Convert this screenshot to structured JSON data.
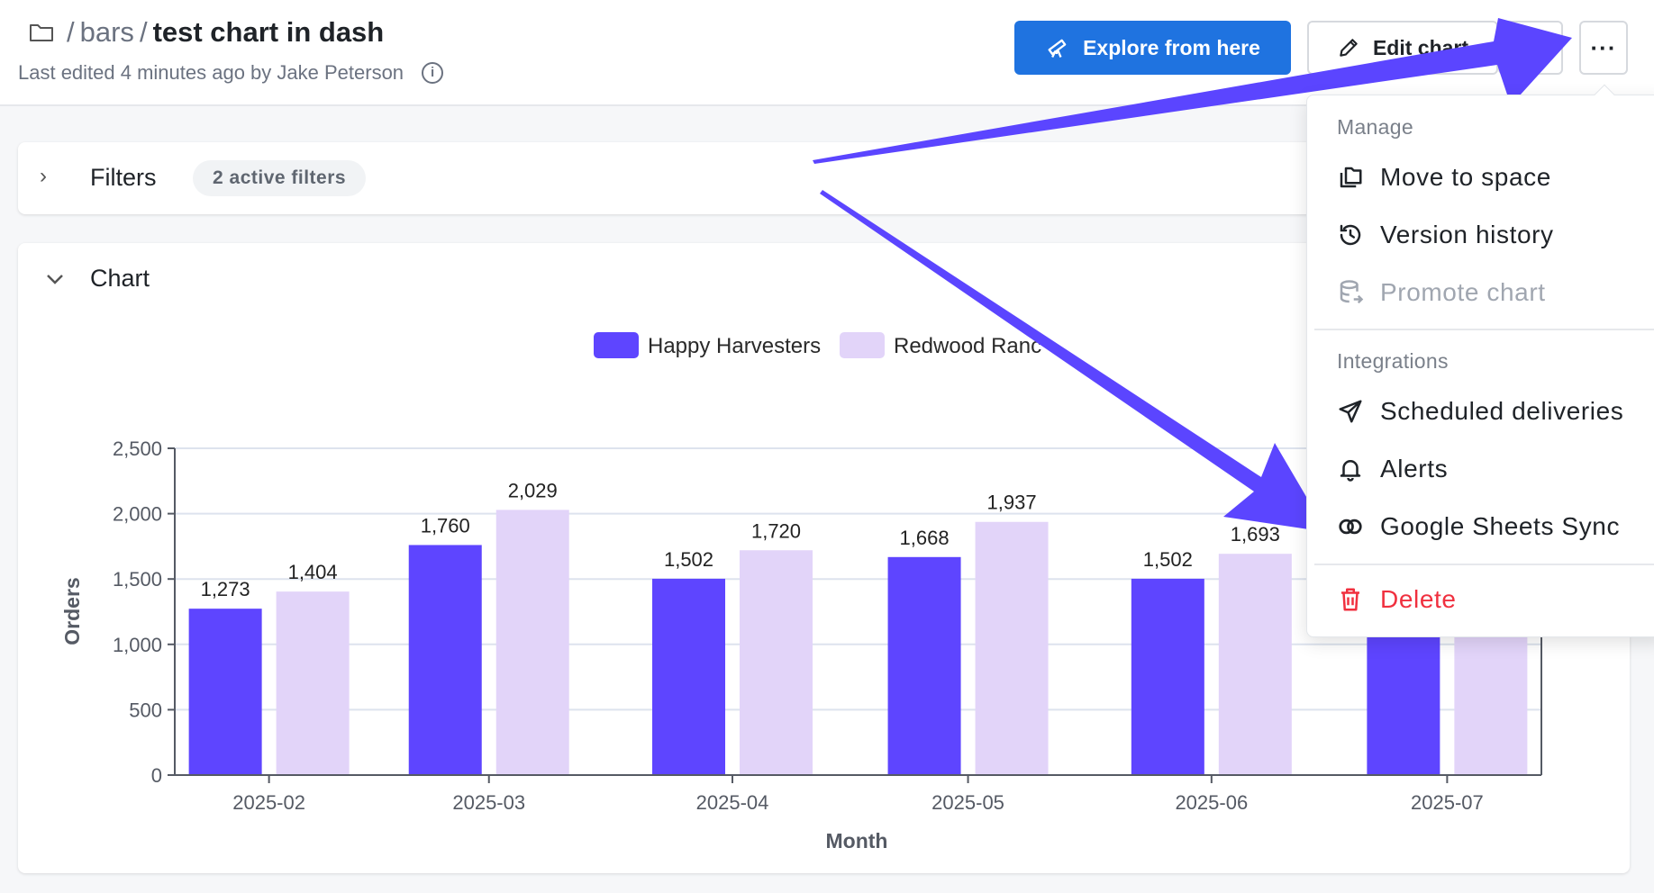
{
  "header": {
    "breadcrumb_space": "bars",
    "separator": "/",
    "title": "test chart in dash",
    "last_edited": "Last edited 4 minutes ago by Jake Peterson",
    "explore_label": "Explore from here",
    "edit_label": "Edit chart",
    "more_label": "···"
  },
  "filters": {
    "label": "Filters",
    "badge": "2 active filters"
  },
  "chart_section": {
    "label": "Chart"
  },
  "menu": {
    "sections": [
      {
        "label": "Manage",
        "items": [
          {
            "label": "Move to space",
            "icon": "folders-icon",
            "state": "normal"
          },
          {
            "label": "Version history",
            "icon": "history-icon",
            "state": "normal"
          },
          {
            "label": "Promote chart",
            "icon": "database-export-icon",
            "state": "disabled"
          }
        ]
      },
      {
        "label": "Integrations",
        "items": [
          {
            "label": "Scheduled deliveries",
            "icon": "send-icon",
            "state": "normal"
          },
          {
            "label": "Alerts",
            "icon": "bell-icon",
            "state": "normal"
          },
          {
            "label": "Google Sheets Sync",
            "icon": "link-icon",
            "state": "normal"
          }
        ]
      }
    ],
    "delete_label": "Delete"
  },
  "colors": {
    "series1": "#5e45ff",
    "series2": "#e2d4f9",
    "annotation_arrow": "#5b45ff",
    "primary_button": "#1f73e0",
    "danger": "#f0303f"
  },
  "chart_data": {
    "type": "bar",
    "categories": [
      "2025-02",
      "2025-03",
      "2025-04",
      "2025-05",
      "2025-06",
      "2025-07"
    ],
    "series": [
      {
        "name": "Happy Harvesters",
        "values": [
          1273,
          1760,
          1502,
          1668,
          1502,
          null
        ]
      },
      {
        "name": "Redwood Ranc",
        "values": [
          1404,
          2029,
          1720,
          1937,
          1693,
          null
        ]
      }
    ],
    "data_labels": true,
    "xlabel": "Month",
    "ylabel": "Orders",
    "ylim": [
      0,
      2500
    ],
    "yticks": [
      "0",
      "500",
      "1,000",
      "1,500",
      "2,000",
      "2,500"
    ],
    "grid": true,
    "legend": "top"
  }
}
